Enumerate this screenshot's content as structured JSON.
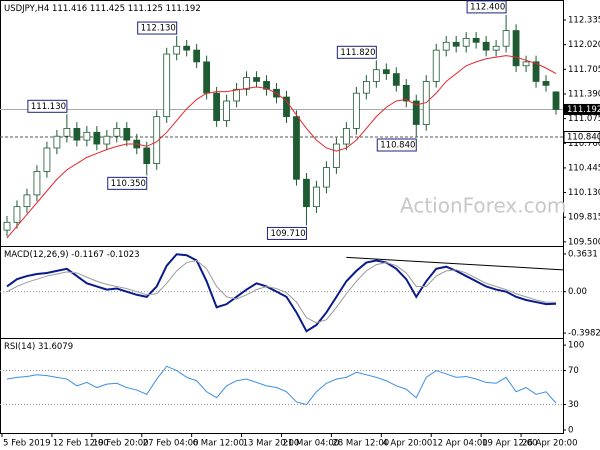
{
  "chart_data": [
    {
      "type": "candlestick",
      "title": "USDJPY,H4",
      "watermark": "ActionForex.com",
      "xlim": [
        0,
        56
      ],
      "ylim": [
        109.46,
        112.565
      ],
      "yticks": [
        {
          "value": 112.335,
          "label": "112.335"
        },
        {
          "value": 112.02,
          "label": "112.020"
        },
        {
          "value": 111.705,
          "label": "111.705"
        },
        {
          "value": 111.39,
          "label": "111.390"
        },
        {
          "value": 111.075,
          "label": "111.075"
        },
        {
          "value": 110.76,
          "label": "110.760"
        },
        {
          "value": 110.445,
          "label": "110.445"
        },
        {
          "value": 110.13,
          "label": "110.130"
        },
        {
          "value": 109.815,
          "label": "109.815"
        },
        {
          "value": 109.5,
          "label": "109.500"
        }
      ],
      "color": "#1e5a32",
      "up_fill": "#ffffff",
      "open": [
        109.65,
        109.75,
        109.95,
        110.1,
        110.4,
        110.7,
        110.85,
        110.95,
        110.8,
        110.9,
        110.75,
        110.85,
        110.95,
        110.8,
        110.7,
        110.5,
        111.1,
        111.9,
        112.0,
        111.95,
        111.8,
        111.4,
        111.05,
        111.3,
        111.45,
        111.6,
        111.55,
        111.45,
        111.35,
        111.1,
        110.3,
        109.95,
        110.2,
        110.45,
        110.75,
        110.95,
        111.4,
        111.55,
        111.7,
        111.65,
        111.5,
        111.3,
        111.0,
        111.55,
        111.95,
        112.05,
        112.0,
        112.1,
        112.05,
        111.95,
        112.0,
        112.2,
        111.75,
        111.8,
        111.55,
        111.416
      ],
      "high": [
        109.83,
        110.03,
        110.18,
        110.48,
        110.78,
        110.93,
        111.13,
        111.03,
        110.98,
        110.98,
        110.93,
        111.03,
        111.03,
        110.88,
        110.78,
        111.18,
        111.98,
        112.13,
        112.08,
        112.03,
        111.88,
        111.48,
        111.38,
        111.53,
        111.68,
        111.68,
        111.63,
        111.53,
        111.43,
        111.18,
        110.38,
        110.28,
        110.53,
        110.83,
        111.03,
        111.48,
        111.63,
        111.82,
        111.78,
        111.73,
        111.58,
        111.38,
        111.63,
        112.03,
        112.13,
        112.13,
        112.18,
        112.18,
        112.13,
        112.08,
        112.4,
        112.28,
        111.88,
        111.88,
        111.63,
        111.425
      ],
      "low": [
        109.57,
        109.67,
        109.87,
        110.02,
        110.32,
        110.62,
        110.77,
        110.72,
        110.72,
        110.67,
        110.67,
        110.77,
        110.72,
        110.62,
        110.35,
        110.42,
        111.02,
        111.82,
        111.87,
        111.72,
        111.32,
        110.97,
        110.97,
        111.22,
        111.37,
        111.47,
        111.37,
        111.27,
        111.02,
        110.22,
        109.71,
        109.87,
        110.12,
        110.37,
        110.67,
        110.87,
        111.32,
        111.47,
        111.57,
        111.42,
        111.22,
        110.84,
        110.92,
        111.47,
        111.87,
        111.92,
        111.92,
        111.97,
        111.87,
        111.87,
        111.92,
        111.67,
        111.67,
        111.47,
        111.42,
        111.125
      ],
      "close": [
        109.75,
        109.95,
        110.1,
        110.4,
        110.7,
        110.85,
        110.95,
        110.8,
        110.9,
        110.75,
        110.85,
        110.95,
        110.8,
        110.7,
        110.5,
        111.1,
        111.9,
        112.0,
        111.95,
        111.8,
        111.4,
        111.05,
        111.3,
        111.45,
        111.6,
        111.55,
        111.45,
        111.35,
        111.1,
        110.3,
        109.95,
        110.2,
        110.45,
        110.75,
        110.95,
        111.4,
        111.55,
        111.7,
        111.65,
        111.5,
        111.3,
        111.0,
        111.55,
        111.95,
        112.05,
        112.0,
        112.1,
        112.05,
        111.95,
        112.0,
        112.2,
        111.75,
        111.8,
        111.55,
        111.5,
        111.192
      ],
      "ma_color": "#e8262a",
      "ma": [
        109.55,
        109.7,
        109.85,
        110.0,
        110.15,
        110.3,
        110.42,
        110.5,
        110.58,
        110.63,
        110.68,
        110.72,
        110.75,
        110.75,
        110.72,
        110.78,
        110.9,
        111.05,
        111.2,
        111.32,
        111.4,
        111.42,
        111.42,
        111.44,
        111.46,
        111.48,
        111.46,
        111.4,
        111.3,
        111.12,
        110.95,
        110.8,
        110.7,
        110.66,
        110.7,
        110.8,
        110.95,
        111.1,
        111.22,
        111.3,
        111.32,
        111.25,
        111.28,
        111.4,
        111.55,
        111.65,
        111.75,
        111.8,
        111.84,
        111.86,
        111.88,
        111.86,
        111.82,
        111.78,
        111.72,
        111.65
      ],
      "levels": [
        {
          "value": 111.192,
          "style": "solid"
        },
        {
          "value": 110.84,
          "label": "110.840",
          "style": "dashed"
        }
      ],
      "annotations": [
        {
          "value": 111.13,
          "label": "111.130",
          "index": 6
        },
        {
          "value": 110.35,
          "label": "110.350",
          "index": 14
        },
        {
          "value": 112.13,
          "label": "112.130",
          "index": 17
        },
        {
          "value": 109.71,
          "label": "109.710",
          "index": 30
        },
        {
          "value": 111.82,
          "label": "111.820",
          "index": 37
        },
        {
          "value": 110.84,
          "label": "110.840",
          "index": 41
        },
        {
          "value": 112.4,
          "label": "112.400",
          "index": 50
        }
      ]
    },
    {
      "type": "line",
      "title": "MACD(12,26,9)",
      "xlim": [
        0,
        56
      ],
      "ylim": [
        -0.436,
        0.42
      ],
      "yticks": [
        0.3631,
        {
          "value": 0,
          "label": "0.00"
        },
        -0.3982
      ],
      "levels": [
        0
      ],
      "series": [
        {
          "color": "#0a1a8c",
          "width": 2,
          "values": [
            0.05,
            0.12,
            0.15,
            0.17,
            0.18,
            0.2,
            0.22,
            0.15,
            0.08,
            0.05,
            0.02,
            0.03,
            0.0,
            -0.03,
            -0.05,
            0.05,
            0.25,
            0.36,
            0.35,
            0.3,
            0.1,
            -0.15,
            -0.12,
            -0.05,
            0.02,
            0.08,
            0.05,
            0.0,
            -0.05,
            -0.2,
            -0.38,
            -0.32,
            -0.2,
            -0.05,
            0.1,
            0.2,
            0.28,
            0.3,
            0.28,
            0.22,
            0.12,
            -0.05,
            0.1,
            0.22,
            0.24,
            0.2,
            0.15,
            0.1,
            0.05,
            0.02,
            0.0,
            -0.05,
            -0.08,
            -0.1,
            -0.12,
            -0.1167
          ]
        },
        {
          "color": "#9a9a9a",
          "width": 1,
          "values": [
            0.0,
            0.05,
            0.09,
            0.12,
            0.15,
            0.17,
            0.19,
            0.18,
            0.14,
            0.1,
            0.07,
            0.05,
            0.03,
            0.0,
            -0.03,
            -0.02,
            0.08,
            0.2,
            0.28,
            0.3,
            0.22,
            0.05,
            -0.05,
            -0.07,
            -0.03,
            0.02,
            0.05,
            0.03,
            -0.01,
            -0.1,
            -0.25,
            -0.3,
            -0.27,
            -0.15,
            -0.02,
            0.1,
            0.2,
            0.26,
            0.28,
            0.25,
            0.18,
            0.05,
            0.05,
            0.15,
            0.2,
            0.21,
            0.18,
            0.13,
            0.08,
            0.05,
            0.02,
            -0.02,
            -0.05,
            -0.08,
            -0.1,
            -0.1023
          ]
        }
      ],
      "trendline": {
        "color": "#000000",
        "x": [
          34,
          56
        ],
        "y": [
          0.33,
          0.21
        ]
      }
    },
    {
      "type": "line",
      "title": "RSI(14)",
      "xlim": [
        0,
        56
      ],
      "ylim": [
        -2.4,
        106
      ],
      "yticks": [
        100,
        70,
        30,
        0
      ],
      "levels": [
        70,
        30
      ],
      "series": [
        {
          "color": "#3c8fe6",
          "width": 1,
          "values": [
            60,
            62,
            63,
            65,
            64,
            62,
            60,
            52,
            56,
            50,
            54,
            55,
            50,
            47,
            42,
            60,
            75,
            70,
            62,
            58,
            45,
            38,
            52,
            58,
            60,
            56,
            52,
            50,
            45,
            33,
            30,
            45,
            55,
            60,
            62,
            68,
            65,
            62,
            58,
            52,
            48,
            38,
            62,
            70,
            66,
            62,
            63,
            60,
            56,
            55,
            62,
            45,
            50,
            42,
            45,
            31.6079
          ]
        }
      ],
      "xticks": [
        {
          "value": 0,
          "label": "5 Feb 2019"
        },
        {
          "value": 5,
          "label": "12 Feb 12:00"
        },
        {
          "value": 9,
          "label": "19 Feb 20:00"
        },
        {
          "value": 14,
          "label": "27 Feb 04:00"
        },
        {
          "value": 19,
          "label": "6 Mar 12:00"
        },
        {
          "value": 24,
          "label": "13 Mar 20:00"
        },
        {
          "value": 28,
          "label": "21 Mar 04:00"
        },
        {
          "value": 33,
          "label": "28 Mar 12:00"
        },
        {
          "value": 38,
          "label": "4 Apr 20:00"
        },
        {
          "value": 43,
          "label": "12 Apr 04:00"
        },
        {
          "value": 48,
          "label": "19 Apr 12:00"
        },
        {
          "value": 52,
          "label": "26 Apr 20:00"
        }
      ]
    }
  ]
}
